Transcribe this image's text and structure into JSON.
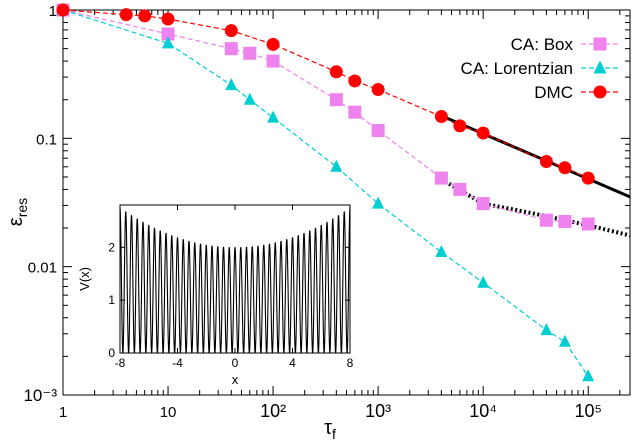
{
  "chart_data": [
    {
      "type": "scatter",
      "xscale": "log",
      "yscale": "log",
      "xlim": [
        1,
        250000
      ],
      "ylim": [
        0.001,
        1
      ],
      "xlabel": "τf",
      "ylabel": "εres",
      "x_tick_labels": [
        "1",
        "10",
        "10²",
        "10³",
        "10⁴",
        "10⁵"
      ],
      "y_tick_labels": [
        "10⁻³",
        "0.01",
        "0.1",
        "1"
      ],
      "legend_position": "top-right",
      "series": [
        {
          "name": "CA: Box",
          "color": "#ee82ee",
          "marker": "square",
          "line": "dashed",
          "points": [
            [
              1,
              1
            ],
            [
              10,
              0.65
            ],
            [
              40,
              0.5
            ],
            [
              60,
              0.46
            ],
            [
              100,
              0.4
            ],
            [
              400,
              0.2
            ],
            [
              600,
              0.16
            ],
            [
              1000,
              0.115
            ],
            [
              4000,
              0.049
            ],
            [
              6000,
              0.04
            ],
            [
              10000,
              0.031
            ],
            [
              40000,
              0.023
            ],
            [
              60000,
              0.0225
            ],
            [
              100000,
              0.0215
            ]
          ]
        },
        {
          "name": "CA: Lorentzian",
          "color": "#00ced1",
          "marker": "triangle",
          "line": "dashed",
          "points": [
            [
              1,
              1
            ],
            [
              10,
              0.55
            ],
            [
              40,
              0.26
            ],
            [
              60,
              0.2
            ],
            [
              100,
              0.145
            ],
            [
              400,
              0.06
            ],
            [
              1000,
              0.031
            ],
            [
              4000,
              0.013
            ],
            [
              10000,
              0.0075
            ],
            [
              40000,
              0.0032
            ],
            [
              60000,
              0.0026
            ],
            [
              100000,
              0.0014
            ]
          ]
        },
        {
          "name": "DMC",
          "color": "#ff0000",
          "marker": "circle",
          "line": "dashed",
          "points": [
            [
              1,
              1
            ],
            [
              4,
              0.92
            ],
            [
              6,
              0.9
            ],
            [
              10,
              0.85
            ],
            [
              40,
              0.69
            ],
            [
              100,
              0.54
            ],
            [
              400,
              0.33
            ],
            [
              600,
              0.28
            ],
            [
              1000,
              0.24
            ],
            [
              4000,
              0.148
            ],
            [
              6000,
              0.125
            ],
            [
              10000,
              0.11
            ],
            [
              40000,
              0.066
            ],
            [
              60000,
              0.059
            ],
            [
              100000,
              0.049
            ]
          ]
        }
      ],
      "fits": [
        {
          "style": "solid",
          "color": "#000000",
          "points": [
            [
              4000,
              0.15
            ],
            [
              250000,
              0.035
            ]
          ]
        },
        {
          "style": "dotted",
          "color": "#000000",
          "points": [
            [
              4000,
              0.048
            ],
            [
              10000,
              0.031
            ],
            [
              30000,
              0.026
            ],
            [
              100000,
              0.021
            ],
            [
              250000,
              0.0175
            ]
          ]
        }
      ]
    },
    {
      "type": "line",
      "xlabel": "x",
      "ylabel": "V(x)",
      "xlim": [
        -8,
        8
      ],
      "ylim": [
        0,
        2.8
      ],
      "x_tick_labels": [
        "-8",
        "-4",
        "0",
        "4",
        "8"
      ],
      "y_tick_labels": [
        "0",
        "1",
        "2"
      ],
      "color": "#000000",
      "wells": 40,
      "envelope": {
        "min": 0.0,
        "center_max": 2.0,
        "edge_max": 2.75
      }
    }
  ]
}
